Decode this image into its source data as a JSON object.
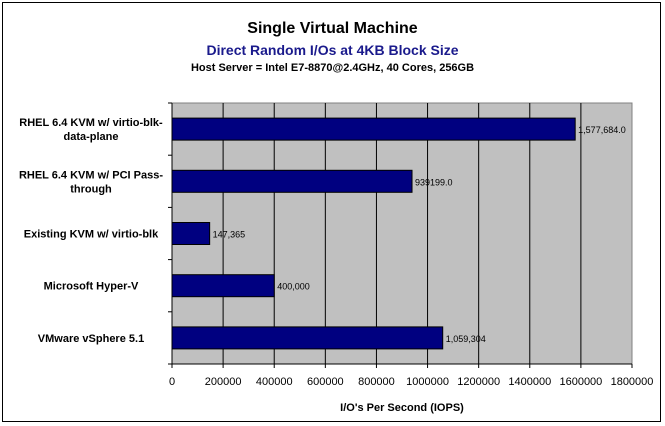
{
  "chart_data": {
    "type": "bar",
    "orientation": "horizontal",
    "title": "Single Virtual Machine",
    "subtitle": "Direct Random I/Os at 4KB Block Size",
    "subtitle2": "Host Server = Intel E7-8870@2.4GHz, 40 Cores, 256GB",
    "categories": [
      [
        "RHEL 6.4 KVM w/ virtio-blk-",
        "data-plane"
      ],
      [
        "RHEL 6.4 KVM w/ PCI Pass-",
        "through"
      ],
      [
        "Existing KVM w/ virtio-blk"
      ],
      [
        "Microsoft Hyper-V"
      ],
      [
        "VMware vSphere 5.1"
      ]
    ],
    "values": [
      1577684,
      939199,
      147365,
      400000,
      1059304
    ],
    "data_labels": [
      "1,577,684.0",
      "939199.0",
      "147,365",
      "400,000",
      "1,059,304"
    ],
    "xlabel": "I/O's Per Second (IOPS)",
    "ylabel": "",
    "xlim": [
      0,
      1800000
    ],
    "xticks": [
      0,
      200000,
      400000,
      600000,
      800000,
      1000000,
      1200000,
      1400000,
      1600000,
      1800000
    ],
    "xtick_labels": [
      "0",
      "200000",
      "400000",
      "600000",
      "800000",
      "1000000",
      "1200000",
      "1400000",
      "1600000",
      "1800000"
    ],
    "grid": true,
    "colors": {
      "bar": "#000080",
      "plot_bg": "#c0c0c0",
      "subtitle": "#1a1a8c"
    }
  }
}
